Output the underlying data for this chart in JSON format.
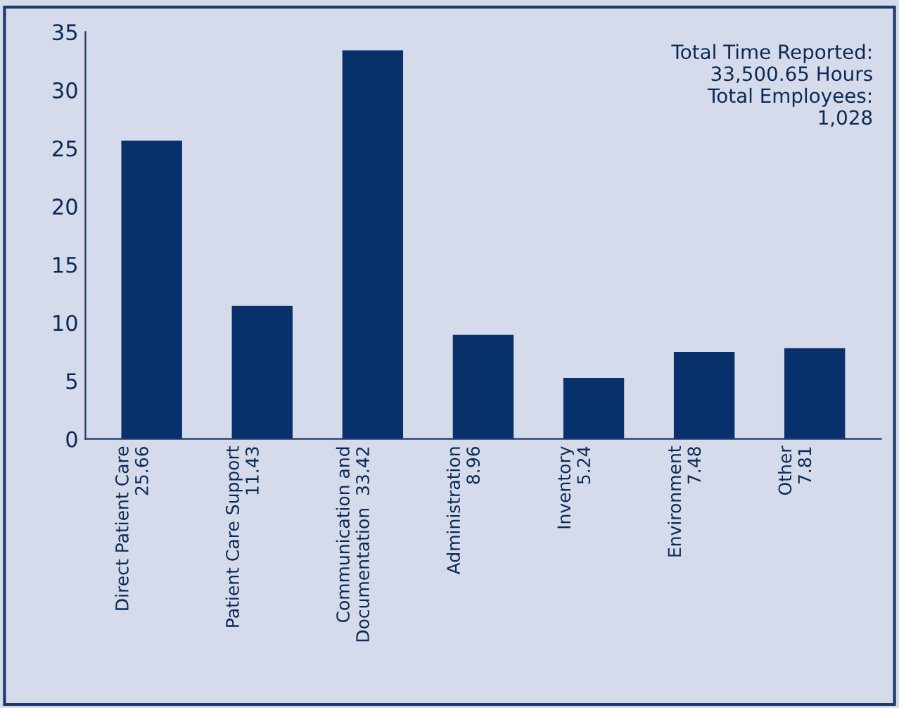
{
  "chart_data": {
    "type": "bar",
    "categories": [
      "Direct Patient Care\n25.66",
      "Patient Care Support\n11.43",
      "Communication and\nDocumentation  33.42",
      "Administration\n8.96",
      "Inventory\n5.24",
      "Environment\n7.48",
      "Other\n7.81"
    ],
    "values": [
      25.66,
      11.43,
      33.42,
      8.96,
      5.24,
      7.48,
      7.81
    ],
    "color": "#08306b",
    "ylim": [
      0,
      35
    ],
    "yticks": [
      0,
      5,
      10,
      15,
      20,
      25,
      30,
      35
    ],
    "grid": false,
    "legend": false,
    "annotations": [
      "Total Time Reported:\n33,500.65 Hours\nTotal Employees:\n1,028"
    ]
  }
}
